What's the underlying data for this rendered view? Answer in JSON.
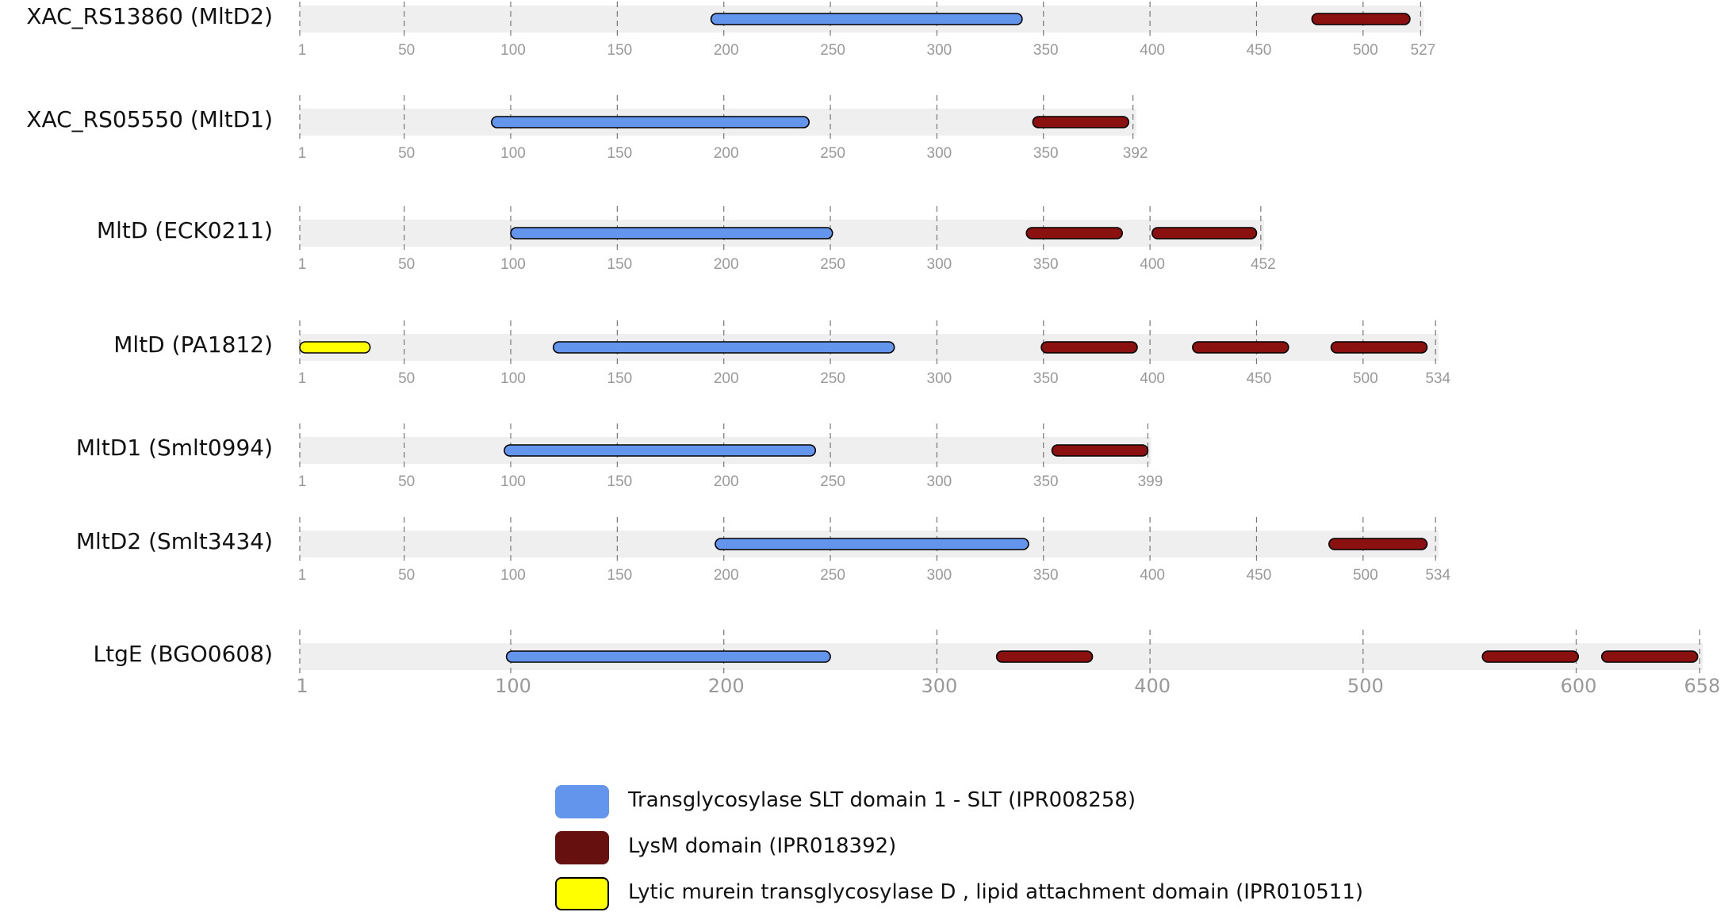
{
  "colors": {
    "slt": "#6495ed",
    "lysm": "#8b1010",
    "lipid": "#ffff00",
    "track": "#efefef",
    "tick": "#999999",
    "legend_lysm": "#661010"
  },
  "proteins": [
    {
      "label": "XAC_RS13860 (MltD2)",
      "length": 527,
      "ticks": [
        1,
        50,
        100,
        150,
        200,
        250,
        300,
        350,
        400,
        450,
        500,
        527
      ],
      "domains": [
        {
          "type": "slt",
          "start": 194,
          "end": 340
        },
        {
          "type": "lysm",
          "start": 476,
          "end": 522
        }
      ]
    },
    {
      "label": "XAC_RS05550 (MltD1)",
      "length": 392,
      "ticks": [
        1,
        50,
        100,
        150,
        200,
        250,
        300,
        350,
        392
      ],
      "domains": [
        {
          "type": "slt",
          "start": 91,
          "end": 240
        },
        {
          "type": "lysm",
          "start": 345,
          "end": 390
        }
      ]
    },
    {
      "label": "MltD (ECK0211)",
      "length": 452,
      "ticks": [
        1,
        50,
        100,
        150,
        200,
        250,
        300,
        350,
        400,
        452
      ],
      "domains": [
        {
          "type": "slt",
          "start": 100,
          "end": 251
        },
        {
          "type": "lysm",
          "start": 342,
          "end": 387
        },
        {
          "type": "lysm",
          "start": 401,
          "end": 450
        }
      ]
    },
    {
      "label": "MltD (PA1812)",
      "length": 534,
      "ticks": [
        1,
        50,
        100,
        150,
        200,
        250,
        300,
        350,
        400,
        450,
        500,
        534
      ],
      "domains": [
        {
          "type": "lipid",
          "start": 1,
          "end": 34
        },
        {
          "type": "slt",
          "start": 120,
          "end": 280
        },
        {
          "type": "lysm",
          "start": 349,
          "end": 394
        },
        {
          "type": "lysm",
          "start": 420,
          "end": 465
        },
        {
          "type": "lysm",
          "start": 485,
          "end": 530
        }
      ]
    },
    {
      "label": "MltD1 (Smlt0994)",
      "length": 399,
      "ticks": [
        1,
        50,
        100,
        150,
        200,
        250,
        300,
        350,
        399
      ],
      "domains": [
        {
          "type": "slt",
          "start": 97,
          "end": 243
        },
        {
          "type": "lysm",
          "start": 354,
          "end": 399
        }
      ]
    },
    {
      "label": "MltD2 (Smlt3434)",
      "length": 534,
      "ticks": [
        1,
        50,
        100,
        150,
        200,
        250,
        300,
        350,
        400,
        450,
        500,
        534
      ],
      "domains": [
        {
          "type": "slt",
          "start": 196,
          "end": 343
        },
        {
          "type": "lysm",
          "start": 484,
          "end": 530
        }
      ]
    },
    {
      "label": "LtgE (BGO0608)",
      "length": 658,
      "ticks": [
        1,
        100,
        200,
        300,
        400,
        500,
        600,
        658
      ],
      "domains": [
        {
          "type": "slt",
          "start": 98,
          "end": 250
        },
        {
          "type": "lysm",
          "start": 328,
          "end": 373
        },
        {
          "type": "lysm",
          "start": 556,
          "end": 601
        },
        {
          "type": "lysm",
          "start": 612,
          "end": 657
        }
      ]
    }
  ],
  "legend": [
    {
      "type": "slt",
      "label": "Transglycosylase SLT domain 1 - SLT (IPR008258)"
    },
    {
      "type": "lysm",
      "label": "LysM domain (IPR018392)"
    },
    {
      "type": "lipid",
      "label": "Lytic murein transglycosylase D , lipid attachment domain (IPR010511)"
    }
  ]
}
